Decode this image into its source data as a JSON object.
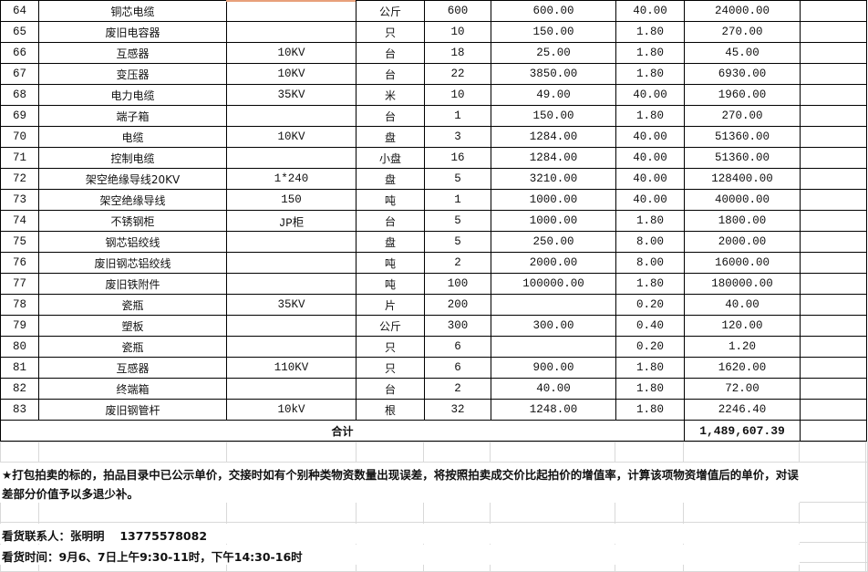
{
  "rows": [
    {
      "no": "64",
      "name": "铜芯电缆",
      "spec": "",
      "unit": "公斤",
      "qty": "600",
      "price": "600.00",
      "rate": "40.00",
      "amount": "24000.00"
    },
    {
      "no": "65",
      "name": "废旧电容器",
      "spec": "",
      "unit": "只",
      "qty": "10",
      "price": "150.00",
      "rate": "1.80",
      "amount": "270.00"
    },
    {
      "no": "66",
      "name": "互感器",
      "spec": "10KV",
      "unit": "台",
      "qty": "18",
      "price": "25.00",
      "rate": "1.80",
      "amount": "45.00"
    },
    {
      "no": "67",
      "name": "变压器",
      "spec": "10KV",
      "unit": "台",
      "qty": "22",
      "price": "3850.00",
      "rate": "1.80",
      "amount": "6930.00"
    },
    {
      "no": "68",
      "name": "电力电缆",
      "spec": "35KV",
      "unit": "米",
      "qty": "10",
      "price": "49.00",
      "rate": "40.00",
      "amount": "1960.00"
    },
    {
      "no": "69",
      "name": "端子箱",
      "spec": "",
      "unit": "台",
      "qty": "1",
      "price": "150.00",
      "rate": "1.80",
      "amount": "270.00"
    },
    {
      "no": "70",
      "name": "电缆",
      "spec": "10KV",
      "unit": "盘",
      "qty": "3",
      "price": "1284.00",
      "rate": "40.00",
      "amount": "51360.00"
    },
    {
      "no": "71",
      "name": "控制电缆",
      "spec": "",
      "unit": "小盘",
      "qty": "16",
      "price": "1284.00",
      "rate": "40.00",
      "amount": "51360.00"
    },
    {
      "no": "72",
      "name": "架空绝缘导线20KV",
      "spec": "1*240",
      "unit": "盘",
      "qty": "5",
      "price": "3210.00",
      "rate": "40.00",
      "amount": "128400.00"
    },
    {
      "no": "73",
      "name": "架空绝缘导线",
      "spec": "150",
      "unit": "吨",
      "qty": "1",
      "price": "1000.00",
      "rate": "40.00",
      "amount": "40000.00"
    },
    {
      "no": "74",
      "name": "不锈钢柜",
      "spec": "JP柜",
      "unit": "台",
      "qty": "5",
      "price": "1000.00",
      "rate": "1.80",
      "amount": "1800.00"
    },
    {
      "no": "75",
      "name": "钢芯铝绞线",
      "spec": "",
      "unit": "盘",
      "qty": "5",
      "price": "250.00",
      "rate": "8.00",
      "amount": "2000.00"
    },
    {
      "no": "76",
      "name": "废旧钢芯铝绞线",
      "spec": "",
      "unit": "吨",
      "qty": "2",
      "price": "2000.00",
      "rate": "8.00",
      "amount": "16000.00"
    },
    {
      "no": "77",
      "name": "废旧铁附件",
      "spec": "",
      "unit": "吨",
      "qty": "100",
      "price": "100000.00",
      "rate": "1.80",
      "amount": "180000.00"
    },
    {
      "no": "78",
      "name": "瓷瓶",
      "spec": "35KV",
      "unit": "片",
      "qty": "200",
      "price": "",
      "rate": "0.20",
      "amount": "40.00"
    },
    {
      "no": "79",
      "name": "塑板",
      "spec": "",
      "unit": "公斤",
      "qty": "300",
      "price": "300.00",
      "rate": "0.40",
      "amount": "120.00"
    },
    {
      "no": "80",
      "name": "瓷瓶",
      "spec": "",
      "unit": "只",
      "qty": "6",
      "price": "",
      "rate": "0.20",
      "amount": "1.20"
    },
    {
      "no": "81",
      "name": "互感器",
      "spec": "110KV",
      "unit": "只",
      "qty": "6",
      "price": "900.00",
      "rate": "1.80",
      "amount": "1620.00"
    },
    {
      "no": "82",
      "name": "终端箱",
      "spec": "",
      "unit": "台",
      "qty": "2",
      "price": "40.00",
      "rate": "1.80",
      "amount": "72.00"
    },
    {
      "no": "83",
      "name": "废旧钢管杆",
      "spec": "10kV",
      "unit": "根",
      "qty": "32",
      "price": "1248.00",
      "rate": "1.80",
      "amount": "2246.40"
    }
  ],
  "total": {
    "label": "合计",
    "amount": "1,489,607.39"
  },
  "note": "★打包拍卖的标的，拍品目录中已公示单价，交接时如有个别种类物资数量出现误差，将按照拍卖成交价比起拍价的增值率，计算该项物资增值后的单价，对误差部分价值予以多退少补。",
  "contact": "看货联系人：张明明　 13775578082",
  "viewing_time": "看货时间：9月6、7日上午9:30-11时，下午14:30-16时"
}
